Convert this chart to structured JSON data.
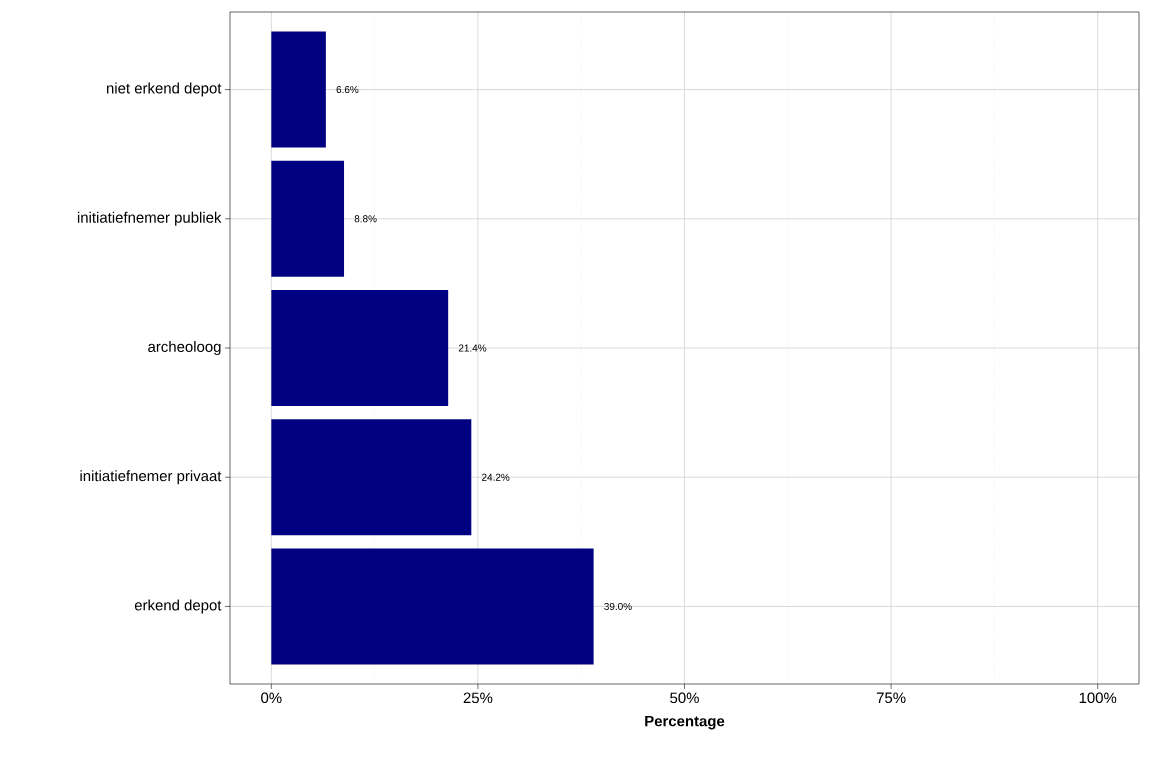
{
  "chart_data": {
    "type": "bar",
    "orientation": "horizontal",
    "xlabel": "Percentage",
    "categories": [
      "niet erkend depot",
      "initiatiefnemer publiek",
      "archeoloog",
      "initiatiefnemer privaat",
      "erkend depot"
    ],
    "values": [
      6.6,
      8.8,
      21.4,
      24.2,
      39.0
    ],
    "value_labels": [
      "6.6%",
      "8.8%",
      "21.4%",
      "24.2%",
      "39.0%"
    ],
    "color": "#000080",
    "xlim": [
      -5,
      105
    ],
    "xticks": [
      {
        "value": 0,
        "label": "0%"
      },
      {
        "value": 25,
        "label": "25%"
      },
      {
        "value": 50,
        "label": "50%"
      },
      {
        "value": 75,
        "label": "75%"
      },
      {
        "value": 100,
        "label": "100%"
      }
    ],
    "grid": true
  }
}
